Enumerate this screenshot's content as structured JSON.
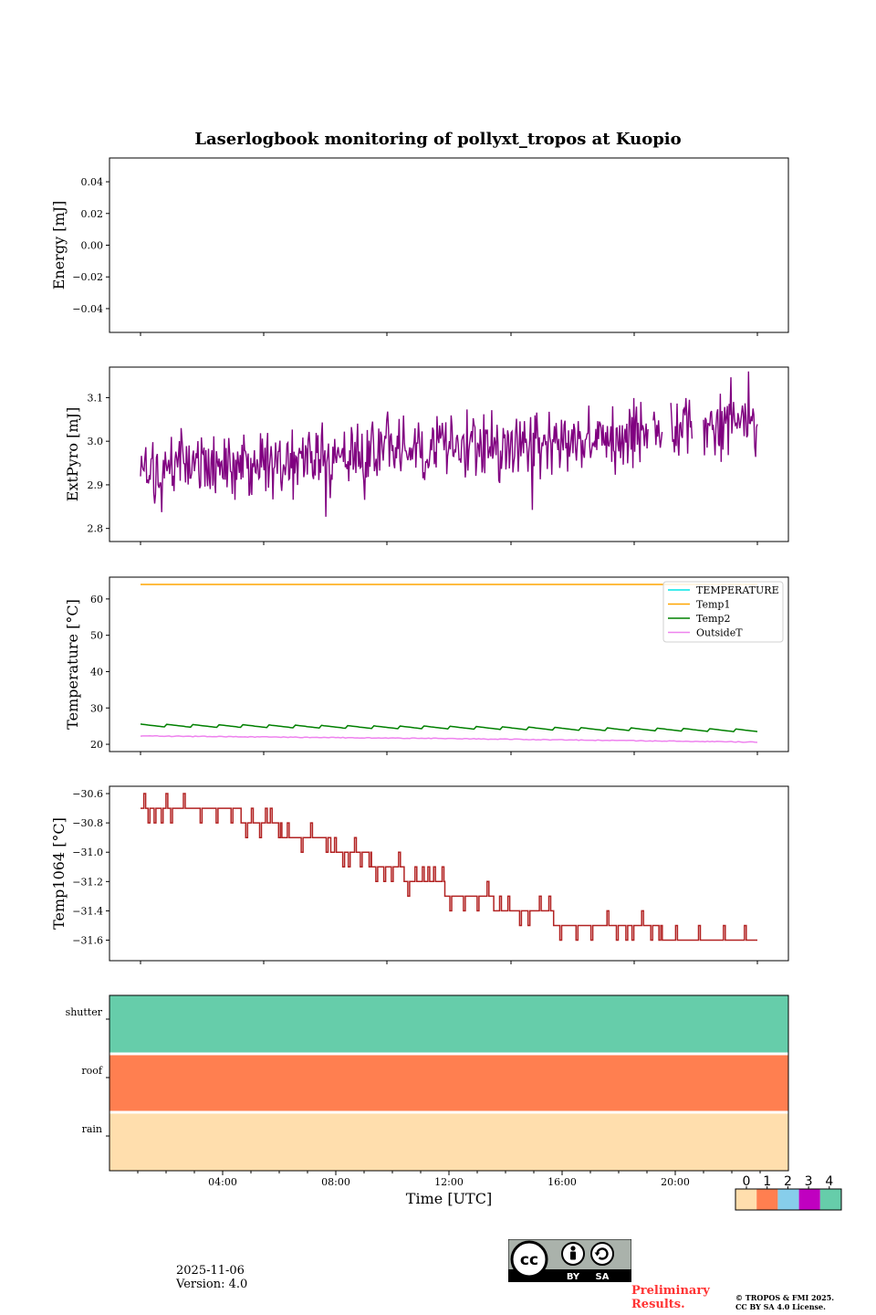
{
  "title": "Laserlogbook monitoring of pollyxt_tropos at Kuopio",
  "chart_data": [
    {
      "type": "line",
      "ylabel": "Energy [mJ]",
      "ylim": [
        -0.055,
        0.055
      ],
      "yticks": [
        -0.04,
        -0.02,
        0.0,
        0.02,
        0.04
      ],
      "ytick_labels": [
        "−0.04",
        "−0.02",
        "0.00",
        "0.02",
        "0.04"
      ],
      "series": []
    },
    {
      "type": "line",
      "ylabel": "ExtPyro [mJ]",
      "ylim": [
        2.77,
        3.17
      ],
      "yticks": [
        2.8,
        2.9,
        3.0,
        3.1
      ],
      "ytick_labels": [
        "2.8",
        "2.9",
        "3.0",
        "3.1"
      ],
      "series": [
        {
          "name": "ExtPyro",
          "color": "#800080",
          "x_hours": [
            1.0,
            23.7
          ],
          "trend_start": 2.93,
          "trend_end": 3.04,
          "noise": 0.06
        }
      ]
    },
    {
      "type": "line",
      "ylabel": "Temperature [°C]",
      "ylim": [
        18,
        66
      ],
      "yticks": [
        20,
        30,
        40,
        50,
        60
      ],
      "ytick_labels": [
        "20",
        "30",
        "40",
        "50",
        "60"
      ],
      "legend": "top-right",
      "series": [
        {
          "name": "TEMPERATURE",
          "color": "#00e5e5",
          "points": []
        },
        {
          "name": "Temp1",
          "color": "#ffa500",
          "points": [
            [
              1.0,
              64.0
            ],
            [
              23.7,
              64.0
            ]
          ]
        },
        {
          "name": "Temp2",
          "color": "#008000",
          "points": [
            [
              1.0,
              25.2
            ],
            [
              12.0,
              24.6
            ],
            [
              23.7,
              23.8
            ]
          ]
        },
        {
          "name": "OutsideT",
          "color": "#ee82ee",
          "points": [
            [
              1.0,
              22.3
            ],
            [
              12.0,
              21.6
            ],
            [
              23.7,
              20.6
            ]
          ]
        }
      ]
    },
    {
      "type": "line",
      "ylabel": "Temp1064 [°C]",
      "ylim": [
        -31.74,
        -30.55
      ],
      "yticks": [
        -31.6,
        -31.4,
        -31.2,
        -31.0,
        -30.8,
        -30.6
      ],
      "ytick_labels": [
        "−31.6",
        "−31.4",
        "−31.2",
        "−31.0",
        "−30.8",
        "−30.6"
      ],
      "series": [
        {
          "name": "Temp1064",
          "color": "#b22222",
          "levels": [
            {
              "start": 1.0,
              "end": 2.2,
              "value": -30.7
            },
            {
              "start": 2.2,
              "end": 4.7,
              "value": -30.7
            },
            {
              "start": 4.7,
              "end": 6.2,
              "value": -30.8
            },
            {
              "start": 6.2,
              "end": 8.0,
              "value": -30.9
            },
            {
              "start": 8.0,
              "end": 9.5,
              "value": -31.0
            },
            {
              "start": 9.5,
              "end": 10.7,
              "value": -31.1
            },
            {
              "start": 10.7,
              "end": 12.2,
              "value": -31.2
            },
            {
              "start": 12.2,
              "end": 14.0,
              "value": -31.3
            },
            {
              "start": 14.0,
              "end": 16.2,
              "value": -31.4
            },
            {
              "start": 16.2,
              "end": 18.4,
              "value": -31.5
            },
            {
              "start": 18.4,
              "end": 20.2,
              "value": -31.5
            },
            {
              "start": 20.2,
              "end": 23.7,
              "value": -31.6
            }
          ]
        }
      ]
    },
    {
      "type": "heatmap",
      "categories": [
        "shutter",
        "roof",
        "rain"
      ],
      "values": [
        4,
        1,
        0
      ],
      "xlabel": "Time [UTC]",
      "xlim_hours": [
        0,
        24
      ],
      "xticks_hours": [
        4,
        8,
        12,
        16,
        20
      ],
      "xtick_labels": [
        "04:00",
        "08:00",
        "12:00",
        "16:00",
        "20:00"
      ],
      "colorbar": {
        "ticks": [
          "0",
          "1",
          "2",
          "3",
          "4"
        ],
        "colors": [
          "#ffdead",
          "#ff7f50",
          "#87ceeb",
          "#c000c0",
          "#66cdaa"
        ]
      }
    }
  ],
  "footer": {
    "date": "2025-11-06",
    "version": "Version: 4.0",
    "preliminary_1": "Preliminary",
    "preliminary_2": "Results.",
    "copyright_1": "© TROPOS & FMI 2025.",
    "copyright_2": "CC BY SA 4.0 License.",
    "cc_by": "BY",
    "cc_sa": "SA"
  }
}
